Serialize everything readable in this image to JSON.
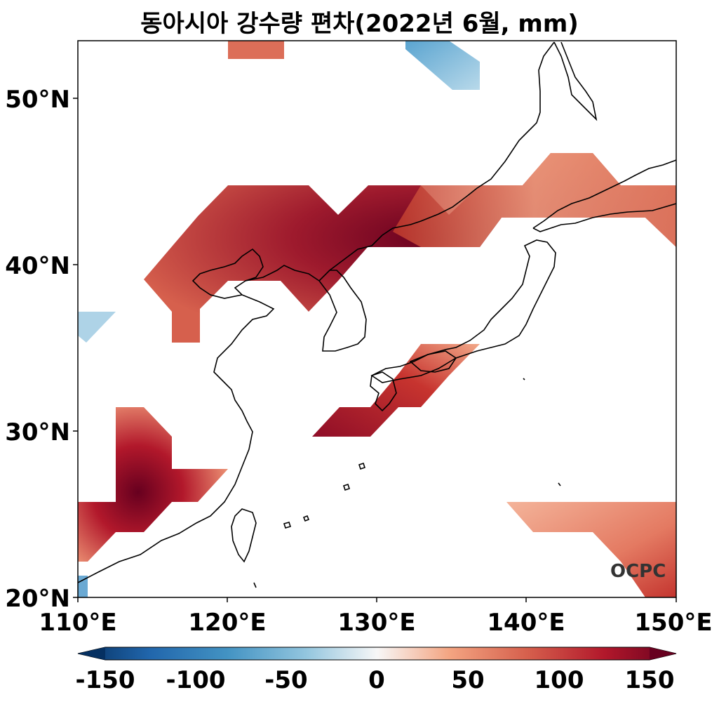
{
  "title": "동아시아 강수량 편차(2022년 6월, mm)",
  "map": {
    "lon_range": [
      110,
      150
    ],
    "lat_range": [
      20,
      53.5
    ],
    "lon_ticks": [
      "110°E",
      "120°E",
      "130°E",
      "140°E",
      "150°E"
    ],
    "lat_ticks": [
      "20°N",
      "30°N",
      "40°N",
      "50°N"
    ],
    "logo": "OCPC"
  },
  "colorbar": {
    "ticks": [
      "-150",
      "-100",
      "-50",
      "0",
      "50",
      "100",
      "150"
    ],
    "range": [
      -150,
      150
    ],
    "colormap": "RdBu_r",
    "colors": {
      "neg_extreme": "#053061",
      "neg_strong": "#2166ac",
      "neg_mid": "#4393c3",
      "neg_light": "#92c5de",
      "neutral": "#f7f7f7",
      "pos_light": "#f4a582",
      "pos_mid": "#d6604d",
      "pos_strong": "#b2182b",
      "pos_extreme": "#67001f"
    }
  }
}
